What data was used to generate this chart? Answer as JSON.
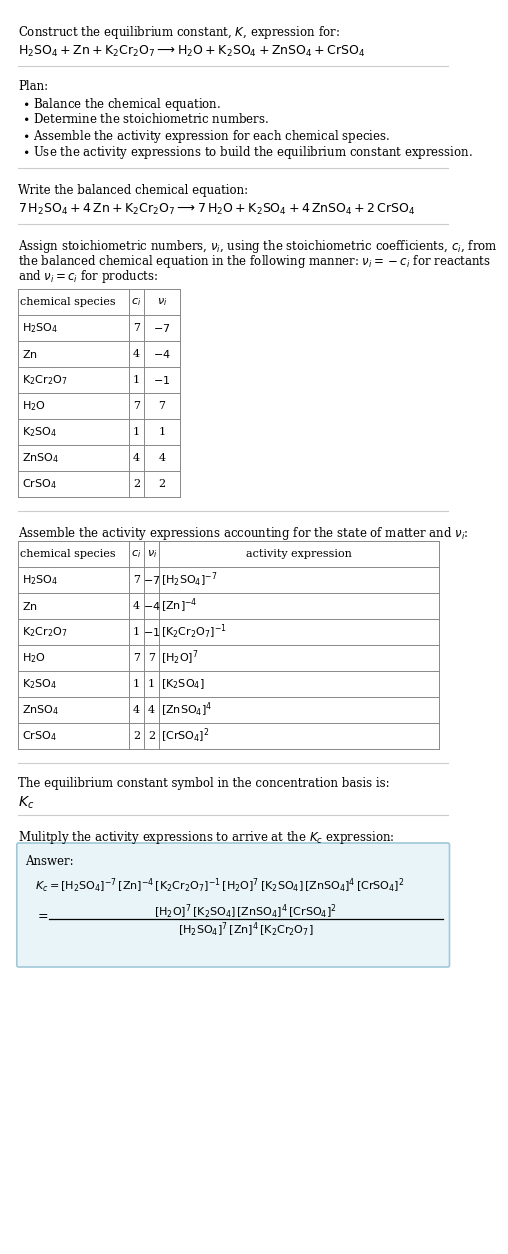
{
  "bg_color": "#ffffff",
  "text_color": "#000000",
  "title_line1": "Construct the equilibrium constant, $K$, expression for:",
  "title_line2": "$\\mathrm{H_2SO_4 + Zn + K_2Cr_2O_7 \\longrightarrow H_2O + K_2SO_4 + ZnSO_4 + CrSO_4}$",
  "plan_header": "Plan:",
  "plan_items": [
    "\\textbullet  Balance the chemical equation.",
    "\\textbullet  Determine the stoichiometric numbers.",
    "\\textbullet  Assemble the activity expression for each chemical species.",
    "\\textbullet  Use the activity expressions to build the equilibrium constant expression."
  ],
  "balanced_header": "Write the balanced chemical equation:",
  "balanced_eq": "$\\mathrm{7\\,H_2SO_4 + 4\\,Zn + K_2Cr_2O_7 \\longrightarrow 7\\,H_2O + K_2SO_4 + 4\\,ZnSO_4 + 2\\,CrSO_4}$",
  "stoich_header": "Assign stoichiometric numbers, $\\nu_i$, using the stoichiometric coefficients, $c_i$, from the balanced chemical equation in the following manner: $\\nu_i = -c_i$ for reactants and $\\nu_i = c_i$ for products:",
  "table1_cols": [
    "chemical species",
    "$c_i$",
    "$\\nu_i$"
  ],
  "table1_data": [
    [
      "$\\mathrm{H_2SO_4}$",
      "7",
      "$-7$"
    ],
    [
      "$\\mathrm{Zn}$",
      "4",
      "$-4$"
    ],
    [
      "$\\mathrm{K_2Cr_2O_7}$",
      "1",
      "$-1$"
    ],
    [
      "$\\mathrm{H_2O}$",
      "7",
      "7"
    ],
    [
      "$\\mathrm{K_2SO_4}$",
      "1",
      "1"
    ],
    [
      "$\\mathrm{ZnSO_4}$",
      "4",
      "4"
    ],
    [
      "$\\mathrm{CrSO_4}$",
      "2",
      "2"
    ]
  ],
  "activity_header": "Assemble the activity expressions accounting for the state of matter and $\\nu_i$:",
  "table2_cols": [
    "chemical species",
    "$c_i$",
    "$\\nu_i$",
    "activity expression"
  ],
  "table2_data": [
    [
      "$\\mathrm{H_2SO_4}$",
      "7",
      "$-7$",
      "$[\\mathrm{H_2SO_4}]^{-7}$"
    ],
    [
      "$\\mathrm{Zn}$",
      "4",
      "$-4$",
      "$[\\mathrm{Zn}]^{-4}$"
    ],
    [
      "$\\mathrm{K_2Cr_2O_7}$",
      "1",
      "$-1$",
      "$[\\mathrm{K_2Cr_2O_7}]^{-1}$"
    ],
    [
      "$\\mathrm{H_2O}$",
      "7",
      "7",
      "$[\\mathrm{H_2O}]^{7}$"
    ],
    [
      "$\\mathrm{K_2SO_4}$",
      "1",
      "1",
      "$[\\mathrm{K_2SO_4}]$"
    ],
    [
      "$\\mathrm{ZnSO_4}$",
      "4",
      "4",
      "$[\\mathrm{ZnSO_4}]^{4}$"
    ],
    [
      "$\\mathrm{CrSO_4}$",
      "2",
      "2",
      "$[\\mathrm{CrSO_4}]^{2}$"
    ]
  ],
  "kc_intro": "The equilibrium constant symbol in the concentration basis is:",
  "kc_symbol": "$K_c$",
  "multiply_header": "Mulitply the activity expressions to arrive at the $K_c$ expression:",
  "answer_box_color": "#e8f4f8",
  "answer_box_border": "#a0c8d8",
  "answer_label": "Answer:",
  "answer_line1": "$K_c = [\\mathrm{H_2SO_4}]^{-7}\\,[\\mathrm{Zn}]^{-4}\\,[\\mathrm{K_2Cr_2O_7}]^{-1}\\,[\\mathrm{H_2O}]^{7}\\,[\\mathrm{K_2SO_4}]\\,[\\mathrm{ZnSO_4}]^{4}\\,[\\mathrm{CrSO_4}]^{2}$",
  "answer_line2_num": "$[\\mathrm{H_2O}]^{7}\\,[\\mathrm{K_2SO_4}]\\,[\\mathrm{ZnSO_4}]^{4}\\,[\\mathrm{CrSO_4}]^{2}$",
  "answer_line2_den": "$[\\mathrm{H_2SO_4}]^{7}\\,[\\mathrm{Zn}]^{4}\\,[\\mathrm{K_2Cr_2O_7}]$"
}
